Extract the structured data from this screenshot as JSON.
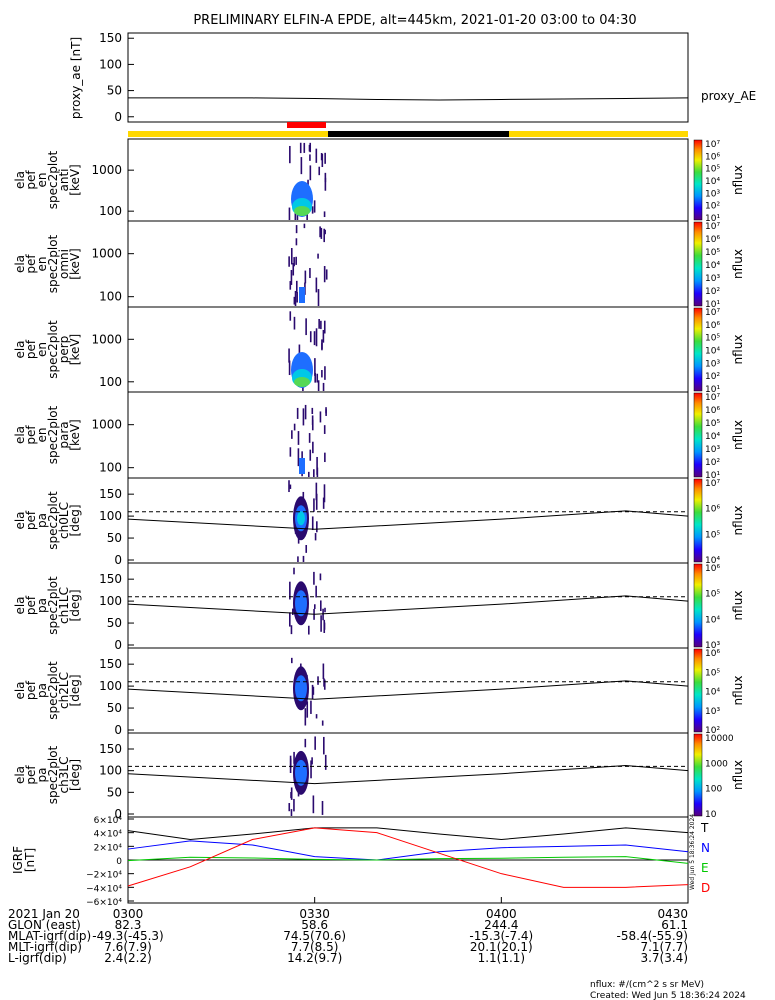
{
  "title": "PRELIMINARY ELFIN-A EPDE, alt=445km, 2021-01-20 03:00 to 04:30",
  "side_text": "Wed Jun  5 18:36:24 2024",
  "footer": {
    "line1": "nflux: #/(cm^2 s sr MeV)",
    "line2": "Created: Wed Jun  5 18:36:24 2024"
  },
  "ephemeris": {
    "rows": [
      {
        "label": "2021 Jan 20",
        "values": [
          "0300",
          "0330",
          "0400",
          "0430"
        ]
      },
      {
        "label": "GLON (east)",
        "values": [
          "82.3",
          "58.6",
          "244.4",
          "61.1"
        ]
      },
      {
        "label": "MLAT-igrf(dip)",
        "values": [
          "-49.3(-45.3)",
          "74.5(70.6)",
          "-15.3(-7.4)",
          "-58.4(-55.9)"
        ]
      },
      {
        "label": "MLT-igrf(dip)",
        "values": [
          "7.6(7.9)",
          "7.7(8.5)",
          "20.1(20.1)",
          "7.1(7.7)"
        ]
      },
      {
        "label": "L-igrf(dip)",
        "values": [
          "2.4(2.2)",
          "14.2(9.7)",
          "1.1(1.1)",
          "3.7(3.4)"
        ]
      }
    ]
  },
  "colors": {
    "bar_yellow": "#ffd800",
    "bar_black": "#000000",
    "bar_red": "#ff0000",
    "spec_dark": "#2a0a6e",
    "spec_blue": "#1e6eff",
    "spec_cyan": "#00c8e6",
    "spec_green": "#55d855",
    "grf_T": "#000000",
    "grf_N": "#0000ff",
    "grf_E": "#00c800",
    "grf_D": "#ff0000"
  },
  "chart_data": [
    {
      "type": "line",
      "ylabel": "proxy_ae [nT]",
      "yticks": [
        "150",
        "100",
        "50",
        "0"
      ],
      "ylim": [
        -10,
        160
      ],
      "legend": "proxy_AE",
      "x": [
        0,
        10,
        20,
        30,
        40,
        50,
        60,
        70,
        80,
        90
      ],
      "values": [
        36,
        36,
        36,
        35,
        33,
        32,
        33,
        34,
        35,
        36
      ]
    },
    {
      "type": "heatmap",
      "panels": [
        {
          "ylabel": "ela pef en spec2plot anti [keV]",
          "yticks": [
            "1000",
            "100"
          ],
          "cbar_ticks": [
            "10⁷",
            "10⁶",
            "10⁵",
            "10⁴",
            "10³",
            "10²",
            "10¹"
          ],
          "cbar_label": "nflux"
        },
        {
          "ylabel": "ela pef en spec2plot omni [keV]",
          "yticks": [
            "1000",
            "100"
          ],
          "cbar_ticks": [
            "10⁷",
            "10⁶",
            "10⁵",
            "10⁴",
            "10³",
            "10²",
            "10¹"
          ],
          "cbar_label": "nflux"
        },
        {
          "ylabel": "ela pef en spec2plot perp [keV]",
          "yticks": [
            "1000",
            "100"
          ],
          "cbar_ticks": [
            "10⁷",
            "10⁶",
            "10⁵",
            "10⁴",
            "10³",
            "10²",
            "10¹"
          ],
          "cbar_label": "nflux"
        },
        {
          "ylabel": "ela pef en spec2plot para [keV]",
          "yticks": [
            "1000",
            "100"
          ],
          "cbar_ticks": [
            "10⁷",
            "10⁶",
            "10⁵",
            "10⁴",
            "10³",
            "10²",
            "10¹"
          ],
          "cbar_label": "nflux"
        },
        {
          "ylabel": "ela pef pa spec2plot ch0LC [deg]",
          "yticks": [
            "150",
            "100",
            "50",
            "0"
          ],
          "cbar_ticks": [
            "10⁷",
            "10⁶",
            "10⁵",
            "10⁴"
          ],
          "cbar_label": "nflux"
        },
        {
          "ylabel": "ela pef pa spec2plot ch1LC [deg]",
          "yticks": [
            "150",
            "100",
            "50",
            "0"
          ],
          "cbar_ticks": [
            "10⁶",
            "10⁵",
            "10⁴",
            "10³"
          ],
          "cbar_label": "nflux"
        },
        {
          "ylabel": "ela pef pa spec2plot ch2LC [deg]",
          "yticks": [
            "150",
            "100",
            "50",
            "0"
          ],
          "cbar_ticks": [
            "10⁶",
            "10⁵",
            "10⁴",
            "10³",
            "10²"
          ],
          "cbar_label": "nflux"
        },
        {
          "ylabel": "ela pef pa spec2plot ch3LC [deg]",
          "yticks": [
            "150",
            "100",
            "50",
            "0"
          ],
          "cbar_ticks": [
            "10000",
            "1000",
            "100",
            "10"
          ],
          "cbar_label": "nflux"
        }
      ]
    },
    {
      "type": "line",
      "ylabel": "IGRF [nT]",
      "yticks": [
        "6×10⁴",
        "4×10⁴",
        "2×10⁴",
        "0",
        "−2×10⁴",
        "−4×10⁴",
        "−6×10⁴"
      ],
      "ylim": [
        -60000,
        60000
      ],
      "x": [
        0,
        10,
        20,
        30,
        40,
        50,
        60,
        70,
        80,
        90
      ],
      "series": [
        {
          "name": "T",
          "values": [
            43000,
            30000,
            38000,
            47000,
            47000,
            38000,
            30000,
            38000,
            47000,
            40000
          ]
        },
        {
          "name": "N",
          "values": [
            16000,
            28000,
            22000,
            5000,
            0,
            12000,
            18000,
            20000,
            22000,
            12000
          ]
        },
        {
          "name": "E",
          "values": [
            -1000,
            4000,
            3000,
            1000,
            0,
            2000,
            2500,
            4000,
            5000,
            -5000
          ]
        },
        {
          "name": "D",
          "values": [
            -38000,
            -10000,
            30000,
            47000,
            40000,
            10000,
            -20000,
            -40000,
            -40000,
            -36000
          ]
        }
      ]
    }
  ]
}
